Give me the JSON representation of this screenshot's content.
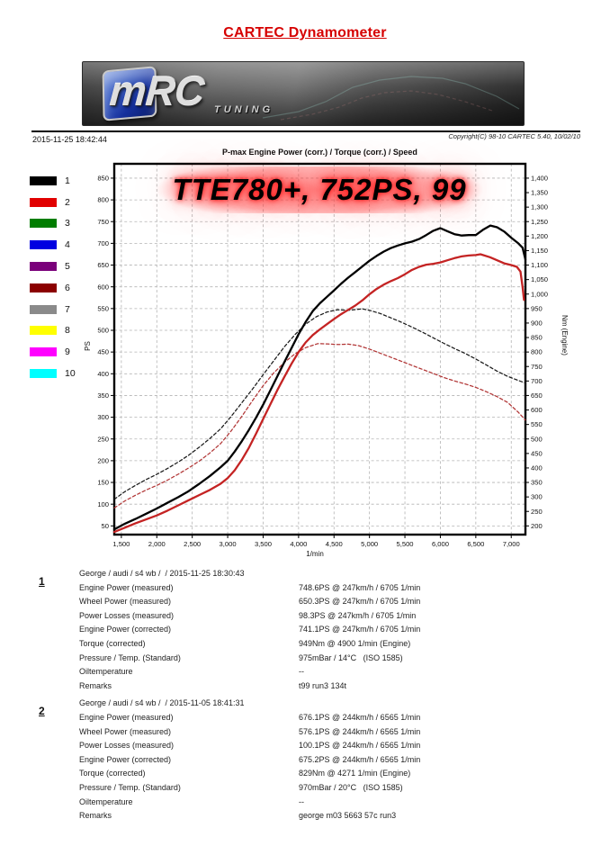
{
  "page": {
    "title": "CARTEC Dynamometer",
    "datetime": "2015-11-25 18:42:44",
    "copyright": "Copyright(C) 98-10 CARTEC 5.40, 10/02/10"
  },
  "banner": {
    "logo_main": "mRC",
    "logo_sub": "TUNING"
  },
  "chart": {
    "title": "P-max Engine Power (corr.) / Torque (corr.) / Speed",
    "watermark": "TTE780+, 752PS, 99",
    "xlabel": "1/min",
    "ylabel_left": "PS",
    "ylabel_right": "Nm  (Engine)"
  },
  "legend": [
    {
      "label": "1",
      "color": "#000000"
    },
    {
      "label": "2",
      "color": "#e10000"
    },
    {
      "label": "3",
      "color": "#007d00"
    },
    {
      "label": "4",
      "color": "#0000e1"
    },
    {
      "label": "5",
      "color": "#7a007a"
    },
    {
      "label": "6",
      "color": "#8b0000"
    },
    {
      "label": "7",
      "color": "#8a8a8a"
    },
    {
      "label": "8",
      "color": "#ffff00"
    },
    {
      "label": "9",
      "color": "#ff00ff"
    },
    {
      "label": "10",
      "color": "#00ffff"
    }
  ],
  "chart_data": {
    "type": "line",
    "title": "P-max Engine Power (corr.) / Torque (corr.) / Speed",
    "xlabel": "1/min",
    "ylabel_left": "PS",
    "ylabel_right": "Nm (Engine)",
    "x_range": [
      1400,
      7200
    ],
    "y_left_range": [
      30,
      883
    ],
    "y_right_range": [
      170,
      1449.5
    ],
    "x_ticks": {
      "from": 1500,
      "to": 7000,
      "step": 500
    },
    "y_left_ticks": {
      "from": 50,
      "to": 850,
      "step": 50
    },
    "y_right_ticks": {
      "from": 200,
      "to": 1400,
      "step": 50
    },
    "grid": true,
    "series": [
      {
        "name": "torque-run1-corrected-Nm",
        "axis": "right",
        "color": "#1a1a1a",
        "style": "dashed",
        "points": [
          [
            1400,
            292
          ],
          [
            1550,
            318
          ],
          [
            1700,
            340
          ],
          [
            1850,
            360
          ],
          [
            2000,
            378
          ],
          [
            2150,
            398
          ],
          [
            2300,
            420
          ],
          [
            2450,
            444
          ],
          [
            2600,
            472
          ],
          [
            2750,
            502
          ],
          [
            2900,
            535
          ],
          [
            3050,
            578
          ],
          [
            3200,
            625
          ],
          [
            3350,
            672
          ],
          [
            3500,
            722
          ],
          [
            3650,
            770
          ],
          [
            3800,
            818
          ],
          [
            3950,
            860
          ],
          [
            4100,
            896
          ],
          [
            4250,
            922
          ],
          [
            4400,
            938
          ],
          [
            4550,
            946
          ],
          [
            4700,
            944
          ],
          [
            4900,
            949
          ],
          [
            5000,
            944
          ],
          [
            5150,
            933
          ],
          [
            5300,
            918
          ],
          [
            5450,
            903
          ],
          [
            5600,
            886
          ],
          [
            5750,
            868
          ],
          [
            5900,
            849
          ],
          [
            6050,
            830
          ],
          [
            6200,
            812
          ],
          [
            6350,
            795
          ],
          [
            6500,
            776
          ],
          [
            6650,
            755
          ],
          [
            6800,
            734
          ],
          [
            6950,
            716
          ],
          [
            7100,
            702
          ],
          [
            7200,
            693
          ]
        ]
      },
      {
        "name": "torque-run2-corrected-Nm",
        "axis": "right",
        "color": "#b13535",
        "style": "dashed",
        "points": [
          [
            1400,
            262
          ],
          [
            1550,
            286
          ],
          [
            1700,
            306
          ],
          [
            1850,
            324
          ],
          [
            2000,
            340
          ],
          [
            2150,
            358
          ],
          [
            2300,
            378
          ],
          [
            2450,
            400
          ],
          [
            2600,
            424
          ],
          [
            2750,
            452
          ],
          [
            2900,
            484
          ],
          [
            3050,
            528
          ],
          [
            3200,
            578
          ],
          [
            3350,
            632
          ],
          [
            3500,
            684
          ],
          [
            3650,
            728
          ],
          [
            3800,
            764
          ],
          [
            3950,
            794
          ],
          [
            4100,
            815
          ],
          [
            4271,
            829
          ],
          [
            4400,
            828
          ],
          [
            4550,
            826
          ],
          [
            4700,
            827
          ],
          [
            4850,
            822
          ],
          [
            5000,
            810
          ],
          [
            5150,
            796
          ],
          [
            5300,
            782
          ],
          [
            5450,
            768
          ],
          [
            5600,
            754
          ],
          [
            5750,
            740
          ],
          [
            5900,
            726
          ],
          [
            6050,
            712
          ],
          [
            6200,
            700
          ],
          [
            6350,
            690
          ],
          [
            6500,
            678
          ],
          [
            6650,
            663
          ],
          [
            6800,
            646
          ],
          [
            6950,
            626
          ],
          [
            7100,
            592
          ],
          [
            7200,
            565
          ]
        ]
      },
      {
        "name": "power-run2-corrected-PS",
        "axis": "left",
        "color": "#c42323",
        "style": "solid",
        "points": [
          [
            1400,
            36
          ],
          [
            1550,
            46
          ],
          [
            1700,
            56
          ],
          [
            1850,
            65
          ],
          [
            2000,
            74
          ],
          [
            2150,
            85
          ],
          [
            2300,
            97
          ],
          [
            2450,
            109
          ],
          [
            2600,
            121
          ],
          [
            2750,
            133
          ],
          [
            2900,
            147
          ],
          [
            3000,
            160
          ],
          [
            3100,
            178
          ],
          [
            3200,
            202
          ],
          [
            3300,
            230
          ],
          [
            3400,
            262
          ],
          [
            3500,
            296
          ],
          [
            3600,
            329
          ],
          [
            3700,
            362
          ],
          [
            3800,
            393
          ],
          [
            3900,
            423
          ],
          [
            4000,
            450
          ],
          [
            4100,
            472
          ],
          [
            4200,
            489
          ],
          [
            4300,
            502
          ],
          [
            4400,
            514
          ],
          [
            4500,
            526
          ],
          [
            4600,
            537
          ],
          [
            4700,
            547
          ],
          [
            4800,
            557
          ],
          [
            4900,
            569
          ],
          [
            5000,
            583
          ],
          [
            5100,
            595
          ],
          [
            5200,
            605
          ],
          [
            5300,
            613
          ],
          [
            5400,
            620
          ],
          [
            5500,
            629
          ],
          [
            5600,
            639
          ],
          [
            5700,
            646
          ],
          [
            5800,
            651
          ],
          [
            5900,
            653
          ],
          [
            6000,
            656
          ],
          [
            6100,
            661
          ],
          [
            6200,
            666
          ],
          [
            6300,
            670
          ],
          [
            6400,
            672
          ],
          [
            6500,
            673
          ],
          [
            6565,
            675
          ],
          [
            6700,
            668
          ],
          [
            6800,
            661
          ],
          [
            6900,
            654
          ],
          [
            7000,
            650
          ],
          [
            7080,
            646
          ],
          [
            7130,
            635
          ],
          [
            7160,
            600
          ],
          [
            7180,
            570
          ]
        ]
      },
      {
        "name": "power-run1-corrected-PS",
        "axis": "left",
        "color": "#000000",
        "style": "solid",
        "points": [
          [
            1400,
            42
          ],
          [
            1550,
            55
          ],
          [
            1700,
            66
          ],
          [
            1850,
            78
          ],
          [
            2000,
            90
          ],
          [
            2150,
            103
          ],
          [
            2300,
            116
          ],
          [
            2450,
            130
          ],
          [
            2600,
            147
          ],
          [
            2750,
            165
          ],
          [
            2900,
            185
          ],
          [
            3000,
            200
          ],
          [
            3100,
            221
          ],
          [
            3200,
            245
          ],
          [
            3300,
            271
          ],
          [
            3400,
            299
          ],
          [
            3500,
            329
          ],
          [
            3600,
            361
          ],
          [
            3700,
            394
          ],
          [
            3800,
            427
          ],
          [
            3900,
            459
          ],
          [
            4000,
            491
          ],
          [
            4100,
            519
          ],
          [
            4200,
            544
          ],
          [
            4300,
            562
          ],
          [
            4400,
            577
          ],
          [
            4500,
            592
          ],
          [
            4600,
            607
          ],
          [
            4700,
            621
          ],
          [
            4800,
            634
          ],
          [
            4900,
            647
          ],
          [
            5000,
            660
          ],
          [
            5100,
            671
          ],
          [
            5200,
            681
          ],
          [
            5300,
            689
          ],
          [
            5400,
            695
          ],
          [
            5500,
            700
          ],
          [
            5600,
            704
          ],
          [
            5700,
            710
          ],
          [
            5800,
            719
          ],
          [
            5900,
            729
          ],
          [
            6000,
            735
          ],
          [
            6100,
            728
          ],
          [
            6200,
            721
          ],
          [
            6300,
            718
          ],
          [
            6400,
            719
          ],
          [
            6500,
            719
          ],
          [
            6600,
            731
          ],
          [
            6705,
            741
          ],
          [
            6800,
            737
          ],
          [
            6900,
            727
          ],
          [
            7000,
            713
          ],
          [
            7100,
            700
          ],
          [
            7160,
            690
          ],
          [
            7200,
            663
          ]
        ]
      }
    ]
  },
  "runs": [
    {
      "number": "1",
      "header": "George / audi / s4 wb /  / 2015-11-25 18:30:43",
      "rows": [
        {
          "label": "Engine Power (measured)",
          "value": "748.6PS @ 247km/h / 6705 1/min"
        },
        {
          "label": "Wheel Power (measured)",
          "value": "650.3PS @ 247km/h / 6705 1/min"
        },
        {
          "label": "Power Losses (measured)",
          "value": "98.3PS @ 247km/h / 6705 1/min"
        },
        {
          "label": "Engine Power (corrected)",
          "value": "741.1PS @ 247km/h / 6705 1/min"
        },
        {
          "label": "Torque (corrected)",
          "value": "949Nm @ 4900 1/min (Engine)"
        },
        {
          "label": "Pressure / Temp. (Standard)",
          "value": "975mBar / 14°C   (ISO 1585)"
        },
        {
          "label": "Oiltemperature",
          "value": "--"
        },
        {
          "label": "Remarks",
          "value": "t99 run3 134t"
        }
      ]
    },
    {
      "number": "2",
      "header": "George / audi / s4 wb /  / 2015-11-05 18:41:31",
      "rows": [
        {
          "label": "Engine Power (measured)",
          "value": "676.1PS @ 244km/h / 6565 1/min"
        },
        {
          "label": "Wheel Power (measured)",
          "value": "576.1PS @ 244km/h / 6565 1/min"
        },
        {
          "label": "Power Losses (measured)",
          "value": "100.1PS @ 244km/h / 6565 1/min"
        },
        {
          "label": "Engine Power (corrected)",
          "value": "675.2PS @ 244km/h / 6565 1/min"
        },
        {
          "label": "Torque (corrected)",
          "value": "829Nm @ 4271 1/min (Engine)"
        },
        {
          "label": "Pressure / Temp. (Standard)",
          "value": "970mBar / 20°C   (ISO 1585)"
        },
        {
          "label": "Oiltemperature",
          "value": "--"
        },
        {
          "label": "Remarks",
          "value": "george m03 5663 57c run3"
        }
      ]
    }
  ]
}
